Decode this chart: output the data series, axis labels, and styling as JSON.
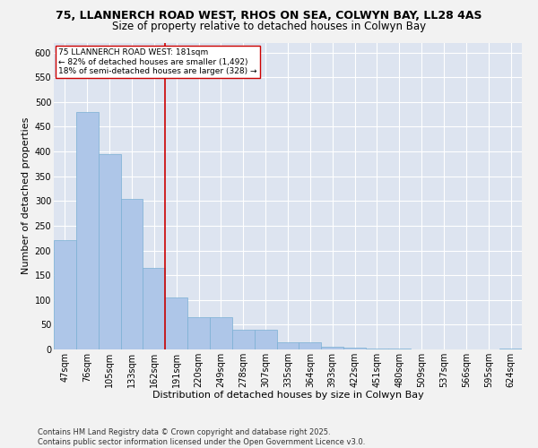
{
  "title_line1": "75, LLANNERCH ROAD WEST, RHOS ON SEA, COLWYN BAY, LL28 4AS",
  "title_line2": "Size of property relative to detached houses in Colwyn Bay",
  "xlabel": "Distribution of detached houses by size in Colwyn Bay",
  "ylabel": "Number of detached properties",
  "categories": [
    "47sqm",
    "76sqm",
    "105sqm",
    "133sqm",
    "162sqm",
    "191sqm",
    "220sqm",
    "249sqm",
    "278sqm",
    "307sqm",
    "335sqm",
    "364sqm",
    "393sqm",
    "422sqm",
    "451sqm",
    "480sqm",
    "509sqm",
    "537sqm",
    "566sqm",
    "595sqm",
    "624sqm"
  ],
  "values": [
    220,
    480,
    395,
    305,
    165,
    105,
    65,
    65,
    40,
    40,
    15,
    15,
    5,
    3,
    1,
    1,
    0,
    0,
    0,
    0,
    1
  ],
  "bar_color": "#aec6e8",
  "bar_edgecolor": "#7aafd4",
  "bar_linewidth": 0.5,
  "vline_color": "#cc0000",
  "vline_linewidth": 1.2,
  "annotation_text": "75 LLANNERCH ROAD WEST: 181sqm\n← 82% of detached houses are smaller (1,492)\n18% of semi-detached houses are larger (328) →",
  "annotation_box_facecolor": "#ffffff",
  "annotation_box_edgecolor": "#cc0000",
  "ylim": [
    0,
    620
  ],
  "yticks": [
    0,
    50,
    100,
    150,
    200,
    250,
    300,
    350,
    400,
    450,
    500,
    550,
    600
  ],
  "bg_color": "#dde4f0",
  "grid_color": "#ffffff",
  "fig_facecolor": "#f2f2f2",
  "footer_text": "Contains HM Land Registry data © Crown copyright and database right 2025.\nContains public sector information licensed under the Open Government Licence v3.0.",
  "title_fontsize": 9,
  "subtitle_fontsize": 8.5,
  "xlabel_fontsize": 8,
  "ylabel_fontsize": 8,
  "tick_fontsize": 7,
  "annotation_fontsize": 6.5,
  "footer_fontsize": 6
}
